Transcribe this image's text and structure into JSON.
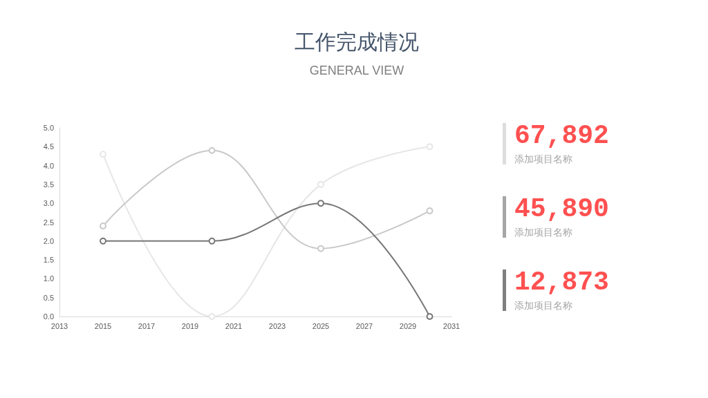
{
  "chart_data": [
    {
      "type": "line",
      "title": "工作完成情况",
      "subtitle": "GENERAL VIEW",
      "x": [
        2015,
        2020,
        2025,
        2030
      ],
      "xlim": [
        2013,
        2031
      ],
      "xticks": [
        2013,
        2015,
        2017,
        2019,
        2021,
        2023,
        2025,
        2027,
        2029,
        2031
      ],
      "ylim": [
        0,
        5
      ],
      "yticks": [
        {
          "value": 0,
          "label": "0.0"
        },
        0.5,
        {
          "value": 1,
          "label": "1.0"
        },
        1.5,
        {
          "value": 2,
          "label": "2.0"
        },
        2.5,
        {
          "value": 3,
          "label": "3.0"
        },
        3.5,
        {
          "value": 4,
          "label": "4.0"
        },
        4.5,
        {
          "value": 5,
          "label": "5.0"
        }
      ],
      "grid": false,
      "marker": "circle",
      "line_style": "solid",
      "series": [
        {
          "color": "#e6e6e6",
          "values": [
            4.3,
            0,
            3.5,
            4.5
          ]
        },
        {
          "color": "#c8c8c8",
          "values": [
            2.4,
            4.4,
            1.8,
            2.8
          ]
        },
        {
          "color": "#777777",
          "values": [
            2.0,
            2.0,
            3.0,
            0
          ]
        }
      ]
    },
    {
      "type": "other",
      "annotations": [
        "67,892",
        "添加项目名称",
        "45,890",
        "添加项目名称",
        "12,873",
        "添加项目名称"
      ],
      "colors": [
        "#dddddd",
        "#a6a6a6",
        "#7f7f7f"
      ]
    }
  ]
}
